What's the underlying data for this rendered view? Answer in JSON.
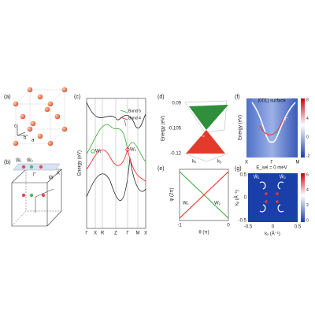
{
  "panels": {
    "a": {
      "label": "(a)",
      "axes": [
        "a",
        "b",
        "c"
      ]
    },
    "b": {
      "label": "(b)",
      "points": [
        "W̄₁",
        "W̄₂",
        "X̄",
        "Γ̄",
        "M̄"
      ]
    },
    "c": {
      "label": "(c)",
      "y_label": "Energy (eV)",
      "legend": [
        "Band 5",
        "Band 4"
      ],
      "points": [
        "W₁",
        "W₂"
      ],
      "k_path": [
        "Γ",
        "X",
        "R",
        "Z",
        "Γ",
        "M",
        "X"
      ]
    },
    "d": {
      "label": "(d)",
      "y_label": "Energy (eV)",
      "ticks": [
        "0.09",
        "-0.105",
        "-0.12"
      ],
      "point": "W₂",
      "k_labels": [
        "kₓ",
        "kᵧ"
      ]
    },
    "e": {
      "label": "(e)",
      "y_label": "φ (2π)",
      "x_label": "θ (π)",
      "x_ticks": [
        "-1",
        "0"
      ],
      "points": [
        "W₁",
        "W₂"
      ]
    },
    "f": {
      "label": "(f)",
      "title": "(001) surface",
      "y_label": "Energy (eV)",
      "k_path": [
        "X",
        "Γ",
        "M"
      ],
      "colorbar_ticks": [
        "8",
        "4",
        "0",
        "-2"
      ],
      "note": "Γ̄"
    },
    "g": {
      "label": "(g)",
      "title": "E_sel = 0 meV",
      "x_label": "kₓ (Å⁻¹)",
      "y_label": "kᵧ (Å⁻¹)",
      "x_ticks": [
        "-0.5",
        "0",
        "0.5"
      ],
      "y_ticks": [
        "0.5",
        "0",
        "-0.5"
      ],
      "colorbar_ticks": [
        "6",
        "4",
        "2",
        "0"
      ],
      "points": [
        "W̄₁",
        "W̄₂"
      ]
    }
  }
}
